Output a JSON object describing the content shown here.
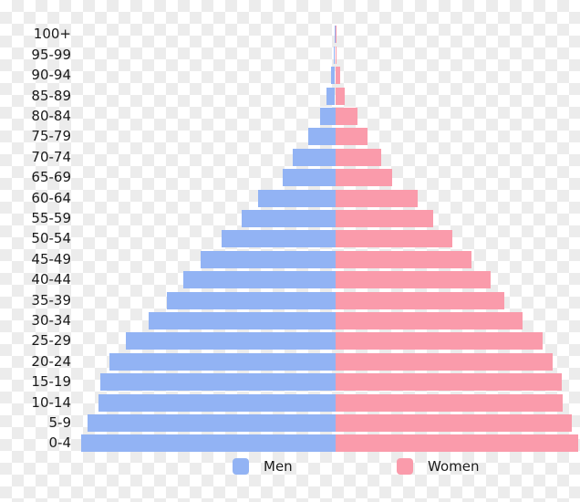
{
  "chart_data": {
    "type": "bar",
    "variant": "population-pyramid",
    "title": "",
    "xlabel": "",
    "ylabel": "",
    "units": "relative bar width (source pixels; no numeric axis shown in image)",
    "legend_position": "bottom",
    "grid": false,
    "age_groups": [
      "100+",
      "95-99",
      "90-94",
      "85-89",
      "80-84",
      "75-79",
      "70-74",
      "65-69",
      "60-64",
      "55-59",
      "50-54",
      "45-49",
      "40-44",
      "35-39",
      "30-34",
      "25-29",
      "20-24",
      "15-19",
      "10-14",
      "5-9",
      "0-4"
    ],
    "series": [
      {
        "name": "Men",
        "side": "left",
        "color": "#92b3f4",
        "values": [
          0.3,
          1.2,
          4.2,
          9.2,
          16.5,
          30,
          47,
          58,
          85,
          103,
          125,
          147.5,
          166.5,
          185,
          205,
          230,
          247.5,
          258,
          260,
          272,
          279
        ]
      },
      {
        "name": "Women",
        "side": "right",
        "color": "#fa9bab",
        "values": [
          0.3,
          1.5,
          5.2,
          10.8,
          24.2,
          35.5,
          50.5,
          62.5,
          90.5,
          107.5,
          128.5,
          149,
          170,
          185,
          205,
          227.5,
          238.5,
          248.5,
          249,
          259,
          266
        ]
      }
    ]
  },
  "legend": {
    "men_label": "Men",
    "women_label": "Women"
  },
  "background": {
    "style": "transparency-checkerboard",
    "checker_colors": [
      "#ffffff",
      "#ececec"
    ]
  }
}
